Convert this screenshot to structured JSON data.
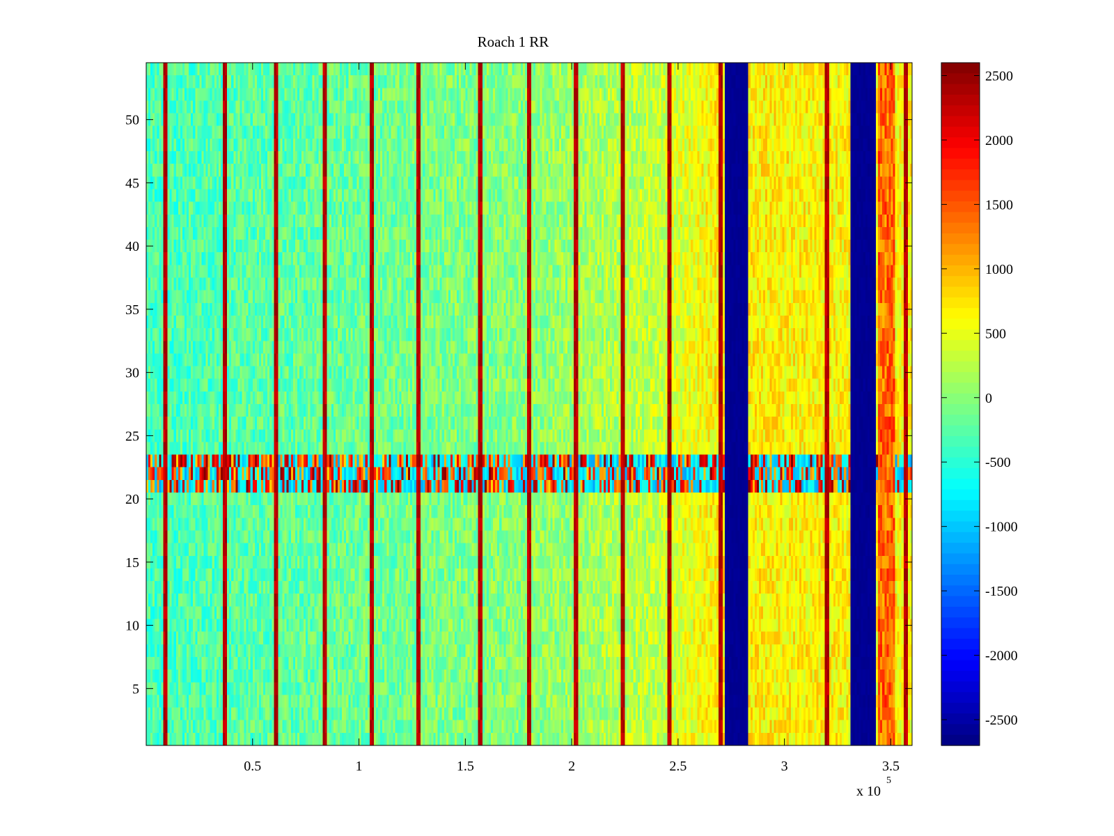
{
  "chart_data": {
    "type": "heatmap",
    "title": "Roach 1 RR",
    "xlabel": "",
    "ylabel": "",
    "x_range": [
      0,
      360000
    ],
    "y_range": [
      0.5,
      54.5
    ],
    "x_ticks": [
      50000,
      100000,
      150000,
      200000,
      250000,
      300000,
      350000
    ],
    "x_tick_labels": [
      "0.5",
      "1",
      "1.5",
      "2",
      "2.5",
      "3",
      "3.5"
    ],
    "x_multiplier": {
      "base": "x 10",
      "exponent": "5"
    },
    "y_ticks": [
      5,
      10,
      15,
      20,
      25,
      30,
      35,
      40,
      45,
      50
    ],
    "y_tick_labels": [
      "5",
      "10",
      "15",
      "20",
      "25",
      "30",
      "35",
      "40",
      "45",
      "50"
    ],
    "colorbar": {
      "colormap": "jet",
      "range": [
        -2700,
        2600
      ],
      "ticks": [
        2500,
        2000,
        1500,
        1000,
        500,
        0,
        -500,
        -1000,
        -1500,
        -2000,
        -2500
      ],
      "tick_labels": [
        "2500",
        "2000",
        "1500",
        "1000",
        "500",
        "0",
        "-500",
        "-1000",
        "-1500",
        "-2000",
        "-2500"
      ]
    },
    "rows": 54,
    "background_trend": [
      {
        "x": 0,
        "value": -350
      },
      {
        "x": 180000,
        "value": 0
      },
      {
        "x": 240000,
        "value": 300
      },
      {
        "x": 270000,
        "value": 700
      },
      {
        "x": 360000,
        "value": 600
      }
    ],
    "spike_columns_x": [
      9000,
      37000,
      61000,
      84000,
      106000,
      128000,
      157000,
      180000,
      202000,
      224000,
      246000,
      270000,
      320000,
      357000
    ],
    "spike_value": 2500,
    "saturated_bands": [
      {
        "x_start": 272000,
        "x_end": 283000,
        "value": -2600
      },
      {
        "x_start": 331000,
        "x_end": 343000,
        "value": -2600
      }
    ],
    "hot_band": {
      "x_start": 344000,
      "x_end": 352000,
      "value": 1400
    },
    "artifact_rows": {
      "y_start": 20.5,
      "y_end": 23.5,
      "value_min": -1200,
      "value_max": 2600
    }
  }
}
